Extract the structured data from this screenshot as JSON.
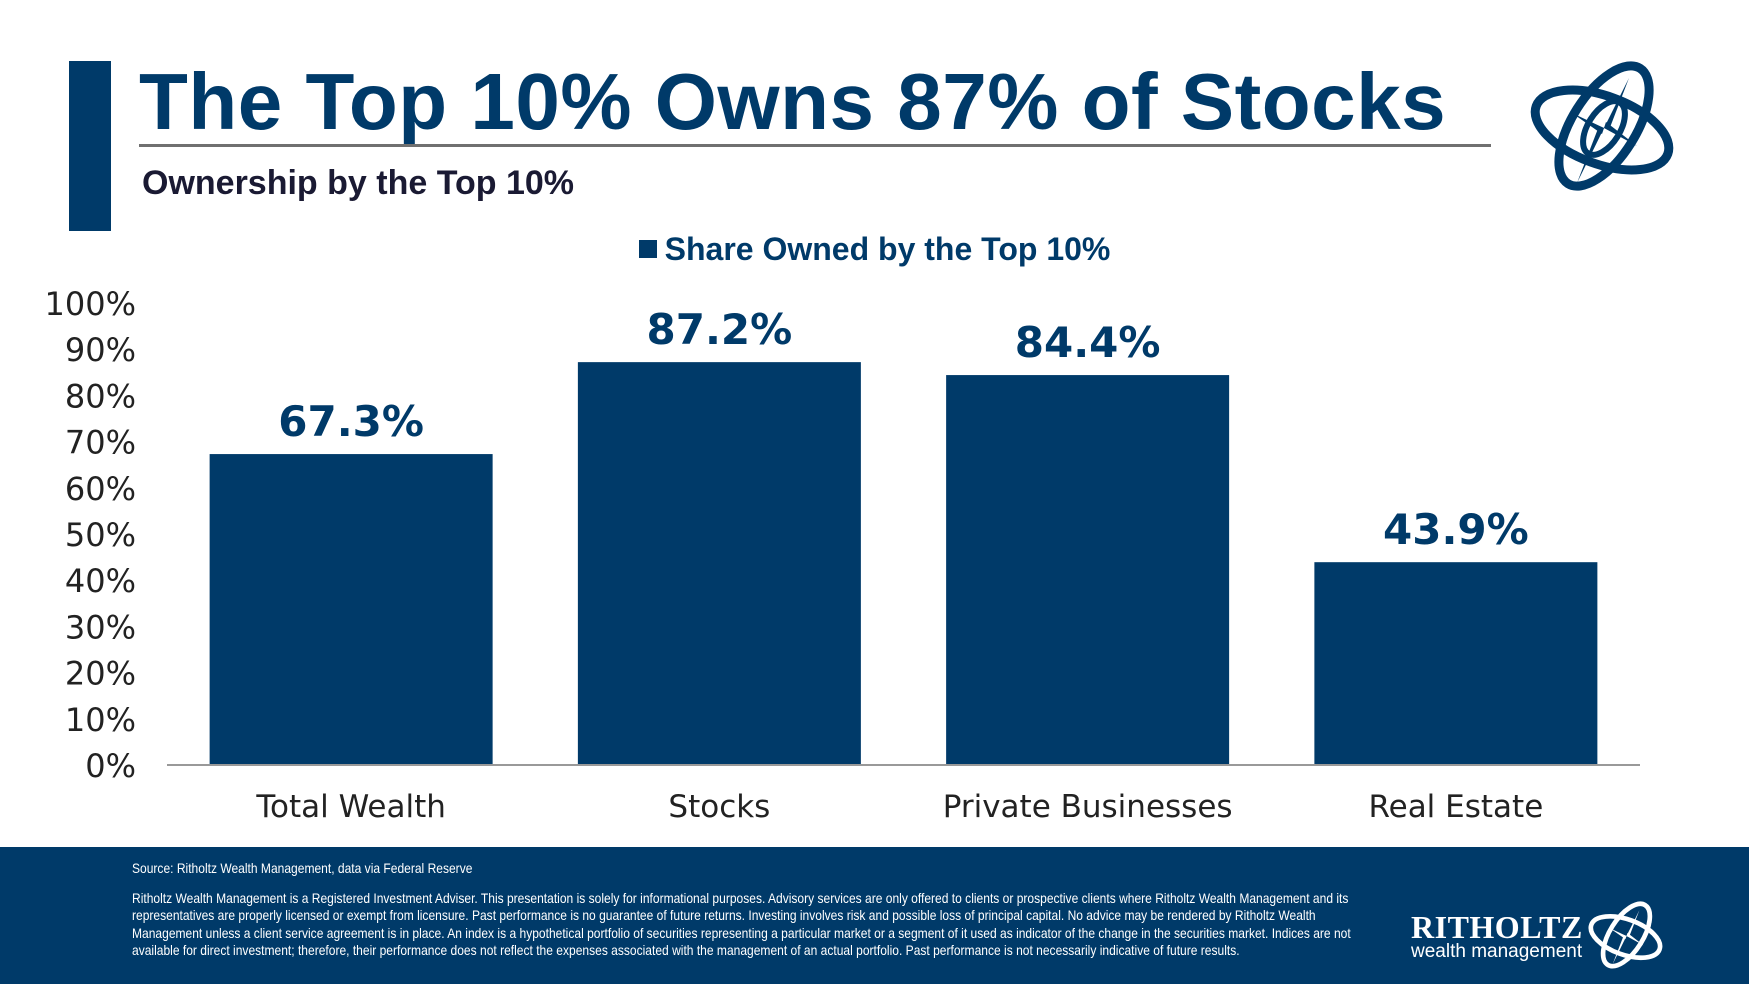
{
  "header": {
    "title": "The Top 10% Owns 87% of Stocks",
    "subtitle": "Ownership by the Top 10%",
    "logo": "ritholtz-compass-logo"
  },
  "colors": {
    "brand": "#003a69",
    "rule": "#707070"
  },
  "chart_data": {
    "type": "bar",
    "title": "",
    "categories": [
      "Total Wealth",
      "Stocks",
      "Private Businesses",
      "Real Estate"
    ],
    "series": [
      {
        "name": "Share Owned by the Top 10%",
        "values": [
          67.3,
          87.2,
          84.4,
          43.9
        ]
      }
    ],
    "data_labels": [
      "67.3%",
      "87.2%",
      "84.4%",
      "43.9%"
    ],
    "y_ticks": [
      "0%",
      "10%",
      "20%",
      "30%",
      "40%",
      "50%",
      "60%",
      "70%",
      "80%",
      "90%",
      "100%"
    ],
    "ylim": [
      0,
      100
    ],
    "xlabel": "",
    "ylabel": "",
    "grid": false,
    "legend": "top-center"
  },
  "footer": {
    "source": "Source: Ritholtz Wealth Management, data via Federal Reserve",
    "disclaimer": "Ritholtz Wealth Management is a Registered Investment Adviser. This presentation is solely for informational purposes. Advisory services are only offered to clients or prospective clients where Ritholtz Wealth Management and its representatives are properly licensed or exempt from licensure. Past performance is no guarantee of future returns. Investing involves risk and possible loss of principal capital. No advice may be rendered by Ritholtz Wealth Management unless a client service agreement is in place. An index is a hypothetical portfolio of securities representing a particular market or a segment of it used as indicator of the change in the securities market. Indices are not available for direct investment; therefore, their performance does not reflect the expenses associated with the management of an actual portfolio. Past performance is not necessarily indicative of future results.",
    "brand_name": "RITHOLTZ",
    "brand_sub": "wealth management"
  }
}
